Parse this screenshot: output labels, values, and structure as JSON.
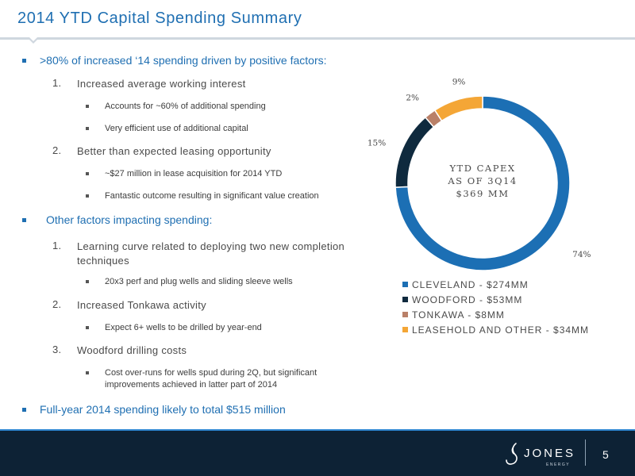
{
  "slide": {
    "title": "2014 YTD Capital Spending Summary",
    "page_number": "5"
  },
  "bullets": {
    "b1": ">80% of increased ‘14 spending driven by positive factors:",
    "b1_items": [
      {
        "num": "1.",
        "text": "Increased average working interest",
        "subs": [
          "Accounts for ~60% of additional spending",
          "Very efficient use of additional capital"
        ]
      },
      {
        "num": "2.",
        "text": "Better than expected leasing opportunity",
        "subs": [
          "~$27 million in lease acquisition for 2014 YTD",
          "Fantastic outcome resulting in significant value creation"
        ]
      }
    ],
    "b2": "Other factors impacting spending:",
    "b2_items": [
      {
        "num": "1.",
        "text": "Learning curve related to deploying two new completion techniques",
        "subs": [
          "20x3 perf and plug wells and sliding sleeve wells"
        ]
      },
      {
        "num": "2.",
        "text": "Increased Tonkawa activity",
        "subs": [
          "Expect 6+ wells to be drilled by year-end"
        ]
      },
      {
        "num": "3.",
        "text": "Woodford drilling costs",
        "subs": [
          "Cost over-runs for wells spud during 2Q, but significant improvements achieved in latter part of 2014"
        ]
      }
    ],
    "b3": "Full-year 2014 spending likely to total $515 million"
  },
  "chart_data": {
    "type": "pie",
    "center_label": [
      "YTD CAPEX",
      "AS OF 3Q14",
      "$369 MM"
    ],
    "slices": [
      {
        "label": "CLEVELAND - $274MM",
        "value": 274,
        "percent_label": "74%",
        "color": "#1c6fb4"
      },
      {
        "label": "WOODFORD - $53MM",
        "value": 53,
        "percent_label": "15%",
        "color": "#0f2a3e"
      },
      {
        "label": "TONKAWA - $8MM",
        "value": 8,
        "percent_label": "2%",
        "color": "#b98068"
      },
      {
        "label": "LEASEHOLD AND OTHER - $34MM",
        "value": 34,
        "percent_label": "9%",
        "color": "#f4a636"
      }
    ],
    "legend_position": "bottom"
  },
  "logo": {
    "word": "JONES",
    "sub": "ENERGY"
  }
}
